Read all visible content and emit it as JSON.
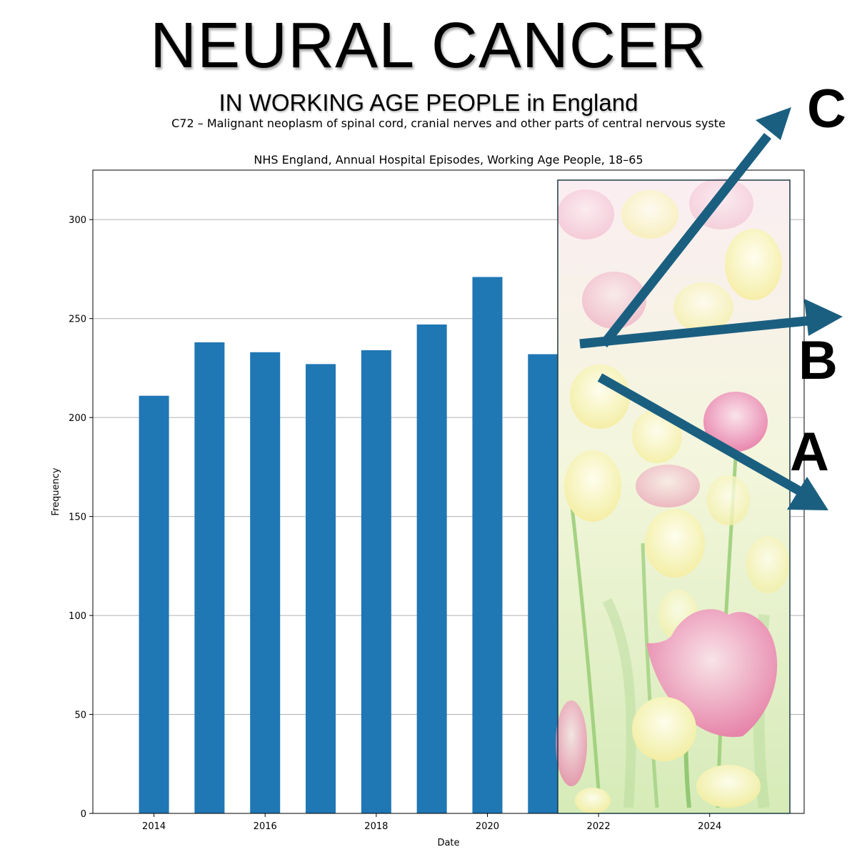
{
  "poster": {
    "title": "NEURAL CANCER",
    "subtitle": "IN WORKING AGE PEOPLE in England"
  },
  "chart_data": {
    "type": "bar",
    "title": "C72 – Malignant neoplasm of spinal cord, cranial nerves and other parts of central nervous syste",
    "subtitle": "NHS England, Annual Hospital Episodes, Working Age People, 18–65",
    "xlabel": "Date",
    "ylabel": "Frequency",
    "x": [
      2014,
      2015,
      2016,
      2017,
      2018,
      2019,
      2020,
      2021
    ],
    "values": [
      211,
      238,
      233,
      227,
      234,
      247,
      271,
      232
    ],
    "xlim": [
      2012.9,
      2025.7
    ],
    "ylim": [
      0,
      325
    ],
    "xticks": [
      "2014",
      "2016",
      "2018",
      "2020",
      "2022",
      "2024"
    ],
    "yticks": [
      "0",
      "50",
      "100",
      "150",
      "200",
      "250",
      "300"
    ],
    "grid": "horizontal",
    "bar_color": "#1f77b4",
    "arrow_color": "#1b5f80",
    "overlay": {
      "image": "tulip field photo",
      "x_range": [
        2021.7,
        2025.6
      ]
    },
    "projection_labels": [
      "C",
      "B",
      "A"
    ]
  }
}
